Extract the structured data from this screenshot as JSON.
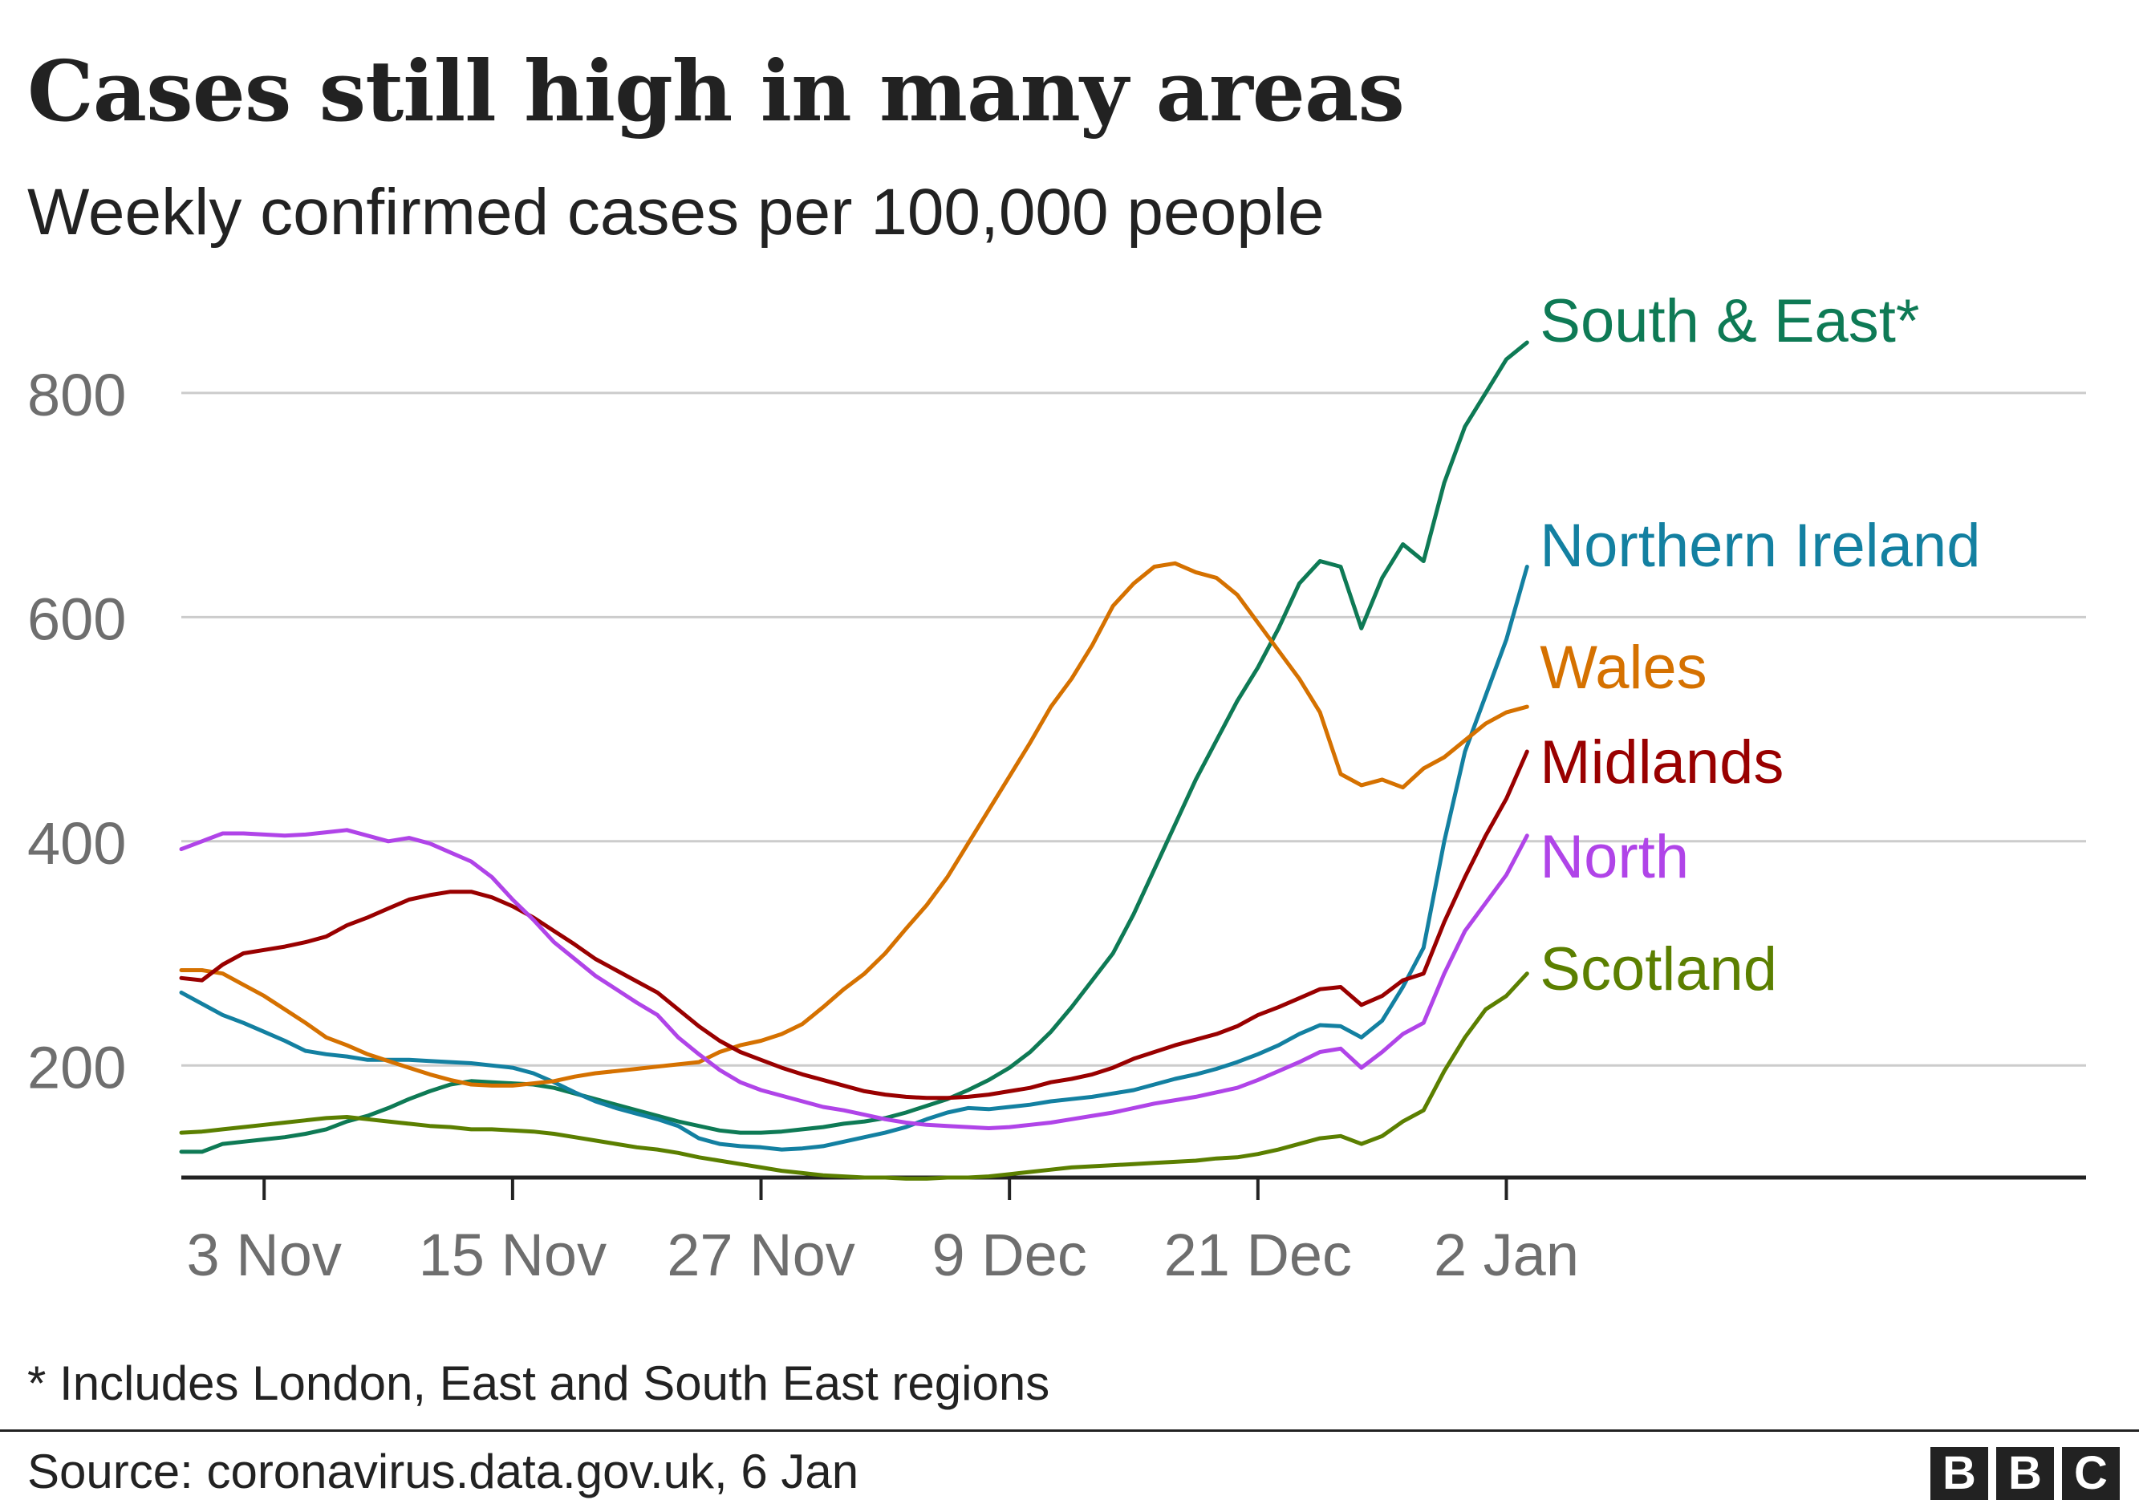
{
  "header": {
    "title": "Cases still high in many areas",
    "subtitle": "Weekly confirmed cases per 100,000 people"
  },
  "footer": {
    "footnote": "* Includes London, East and South East regions",
    "source": "Source: coronavirus.data.gov.uk, 6 Jan",
    "logo_letters": [
      "B",
      "B",
      "C"
    ]
  },
  "chart_data": {
    "type": "line",
    "title": "Cases still high in many areas",
    "subtitle": "Weekly confirmed cases per 100,000 people",
    "xlabel": "",
    "ylabel": "",
    "x_start": "2020-10-30",
    "x_ticks": [
      {
        "label": "3 Nov",
        "date": "2020-11-03"
      },
      {
        "label": "15 Nov",
        "date": "2020-11-15"
      },
      {
        "label": "27 Nov",
        "date": "2020-11-27"
      },
      {
        "label": "9 Dec",
        "date": "2020-12-09"
      },
      {
        "label": "21 Dec",
        "date": "2020-12-21"
      },
      {
        "label": "2 Jan",
        "date": "2021-01-02"
      }
    ],
    "xlim": [
      "2020-10-30",
      "2021-01-30"
    ],
    "y_ticks": [
      200,
      400,
      600,
      800
    ],
    "ylim": [
      100,
      850
    ],
    "grid": true,
    "legend": "labels at line ends",
    "series": [
      {
        "name": "South & East*",
        "color": "#0e7a55",
        "values": [
          123,
          123,
          130,
          132,
          134,
          136,
          139,
          143,
          150,
          155,
          162,
          170,
          177,
          183,
          186,
          185,
          184,
          183,
          180,
          175,
          170,
          165,
          160,
          155,
          150,
          146,
          142,
          140,
          140,
          141,
          143,
          145,
          148,
          150,
          153,
          158,
          164,
          170,
          178,
          187,
          198,
          212,
          230,
          252,
          276,
          300,
          335,
          375,
          415,
          455,
          490,
          525,
          555,
          590,
          630,
          650,
          645,
          590,
          635,
          665,
          650,
          720,
          770,
          800,
          830,
          845
        ],
        "end_label": "South & East*"
      },
      {
        "name": "Northern Ireland",
        "color": "#1380a1",
        "values": [
          265,
          255,
          245,
          238,
          230,
          222,
          213,
          210,
          208,
          205,
          205,
          205,
          204,
          203,
          202,
          200,
          198,
          193,
          185,
          176,
          168,
          162,
          157,
          152,
          146,
          135,
          130,
          128,
          127,
          125,
          126,
          128,
          132,
          136,
          140,
          145,
          152,
          158,
          162,
          161,
          163,
          165,
          168,
          170,
          172,
          175,
          178,
          183,
          188,
          192,
          197,
          203,
          210,
          218,
          228,
          236,
          235,
          225,
          240,
          270,
          305,
          400,
          480,
          530,
          580,
          645
        ],
        "end_label": "Northern Ireland"
      },
      {
        "name": "Wales",
        "color": "#d57100",
        "values": [
          285,
          285,
          282,
          272,
          262,
          250,
          238,
          225,
          218,
          210,
          204,
          198,
          192,
          187,
          183,
          182,
          182,
          184,
          186,
          190,
          193,
          195,
          197,
          199,
          201,
          203,
          212,
          218,
          222,
          228,
          237,
          252,
          268,
          282,
          300,
          322,
          343,
          368,
          398,
          428,
          458,
          488,
          520,
          545,
          575,
          610,
          630,
          645,
          648,
          640,
          635,
          620,
          595,
          570,
          545,
          515,
          460,
          450,
          455,
          448,
          465,
          475,
          490,
          505,
          515,
          520
        ],
        "end_label": "Wales"
      },
      {
        "name": "Midlands",
        "color": "#990000",
        "values": [
          278,
          276,
          290,
          300,
          303,
          306,
          310,
          315,
          325,
          332,
          340,
          348,
          352,
          355,
          355,
          350,
          342,
          332,
          320,
          308,
          295,
          285,
          275,
          265,
          250,
          235,
          222,
          212,
          205,
          198,
          192,
          187,
          182,
          177,
          174,
          172,
          171,
          171,
          172,
          174,
          177,
          180,
          185,
          188,
          192,
          198,
          206,
          212,
          218,
          223,
          228,
          235,
          245,
          252,
          260,
          268,
          270,
          254,
          262,
          276,
          282,
          328,
          368,
          405,
          438,
          480
        ],
        "end_label": "Midlands"
      },
      {
        "name": "North",
        "color": "#b044e8",
        "values": [
          393,
          400,
          407,
          407,
          406,
          405,
          406,
          408,
          410,
          405,
          400,
          403,
          398,
          390,
          382,
          368,
          348,
          330,
          310,
          295,
          280,
          268,
          256,
          245,
          225,
          210,
          196,
          185,
          178,
          173,
          168,
          163,
          160,
          156,
          152,
          149,
          147,
          146,
          145,
          144,
          145,
          147,
          149,
          152,
          155,
          158,
          162,
          166,
          169,
          172,
          176,
          180,
          187,
          195,
          203,
          212,
          215,
          198,
          212,
          228,
          238,
          282,
          320,
          345,
          370,
          405
        ],
        "end_label": "North"
      },
      {
        "name": "Scotland",
        "color": "#5b7f00",
        "values": [
          140,
          141,
          143,
          145,
          147,
          149,
          151,
          153,
          154,
          152,
          150,
          148,
          146,
          145,
          143,
          143,
          142,
          141,
          139,
          136,
          133,
          130,
          127,
          125,
          122,
          118,
          115,
          112,
          109,
          106,
          104,
          102,
          101,
          100,
          100,
          99,
          99,
          100,
          100,
          101,
          103,
          105,
          107,
          109,
          110,
          111,
          112,
          113,
          114,
          115,
          117,
          118,
          121,
          125,
          130,
          135,
          137,
          130,
          137,
          150,
          160,
          195,
          225,
          250,
          262,
          282
        ],
        "end_label": "Scotland"
      }
    ]
  }
}
